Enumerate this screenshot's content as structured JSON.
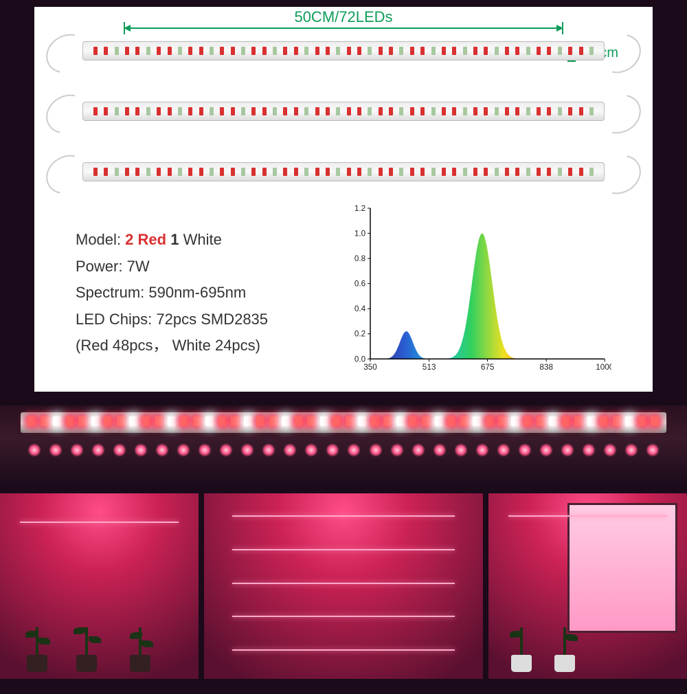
{
  "dimension": {
    "length": "50CM/72LEDs",
    "height": "1.4cm"
  },
  "specs": {
    "model_label": "Model:",
    "model_red_count": "2",
    "model_red_word": "Red",
    "model_white_count": "1",
    "model_white_word": "White",
    "power": "Power: 7W",
    "spectrum": "Spectrum: 590nm-695nm",
    "chips": "LED Chips: 72pcs SMD2835",
    "breakdown": "(Red 48pcs， White 24pcs)"
  },
  "chart": {
    "type": "area-spectrum",
    "xlim": [
      350,
      1000
    ],
    "ylim": [
      0,
      1.2
    ],
    "xticks": [
      "350",
      "513",
      "675",
      "838",
      "1000"
    ],
    "yticks": [
      "0.0",
      "0.2",
      "0.4",
      "0.6",
      "0.8",
      "1.0",
      "1.2"
    ],
    "background_color": "#ffffff",
    "axis_color": "#000000",
    "label_fontsize": 12,
    "peaks": [
      {
        "center_nm": 450,
        "height": 0.22
      },
      {
        "center_nm": 660,
        "height": 1.0
      }
    ],
    "strip_leds_per_bar": 48,
    "led_pattern": [
      "r",
      "r",
      "w"
    ],
    "lit_leds": 50,
    "glow_dots": 30,
    "colors": {
      "green_label": "#0d9d5a",
      "spectrum_gradient": [
        "#3a2a8a",
        "#2a5ad0",
        "#20c0e0",
        "#30d060",
        "#f0e020",
        "#f07020",
        "#ff2020",
        "#a01010"
      ]
    }
  },
  "plant_panels": 3
}
